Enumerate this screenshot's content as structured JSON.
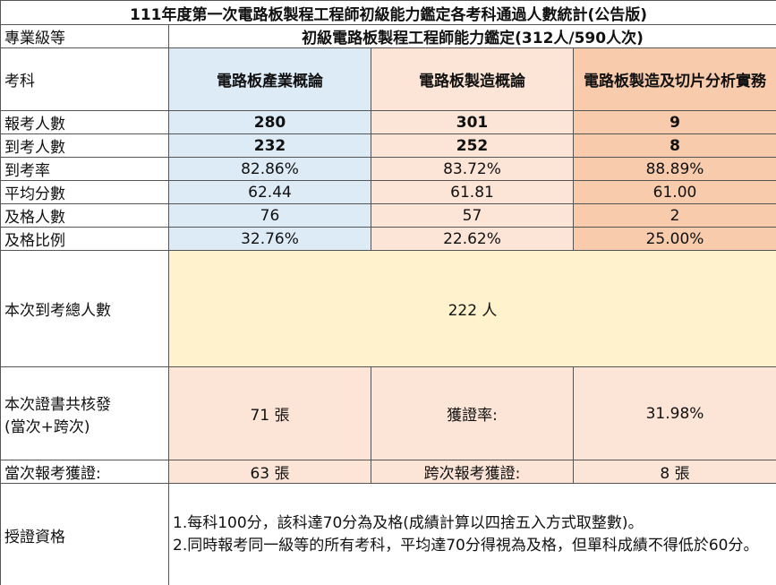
{
  "title": "111年度第一次電路板製程工程師初級能力鑑定各考科通過人數統計(公告版)",
  "level_label": "專業級等",
  "level": "初級電路板製程工程師能力鑑定(312人/590人次)",
  "subject_label": "考科",
  "subjects": [
    "電路板產業概論",
    "電路板製造概論",
    "電路板製造及切片分析實務"
  ],
  "stats": [
    {
      "label": "報考人數",
      "values": [
        "280",
        "301",
        "9"
      ]
    },
    {
      "label": "到考人數",
      "values": [
        "232",
        "252",
        "8"
      ]
    },
    {
      "label": "到考率",
      "values": [
        "82.86%",
        "83.72%",
        "88.89%"
      ]
    },
    {
      "label": "平均分數",
      "values": [
        "62.44",
        "61.81",
        "61.00"
      ]
    },
    {
      "label": "及格人數",
      "values": [
        "76",
        "57",
        "2"
      ]
    },
    {
      "label": "及格比例",
      "values": [
        "32.76%",
        "22.62%",
        "25.00%"
      ]
    }
  ],
  "total": {
    "label": "本次到考總人數",
    "value": "222 人"
  },
  "certs": {
    "label": "本次證書共核發\n(當次+跨次)",
    "value": "71 張",
    "rate_label": "獲證率:",
    "rate_value": "31.98%"
  },
  "current": {
    "label": "當次報考獲證:",
    "value": "63 張"
  },
  "cross": {
    "label": "跨次報考獲證:",
    "value": "8 張"
  },
  "qualification": {
    "label": "授證資格",
    "notes": [
      "1.每科100分，該科達70分為及格(成績計算以四捨五入方式取整數)。",
      "2.同時報考同一級等的所有考科，平均達70分得視為及格，但單科成績不得低於60分。"
    ]
  }
}
